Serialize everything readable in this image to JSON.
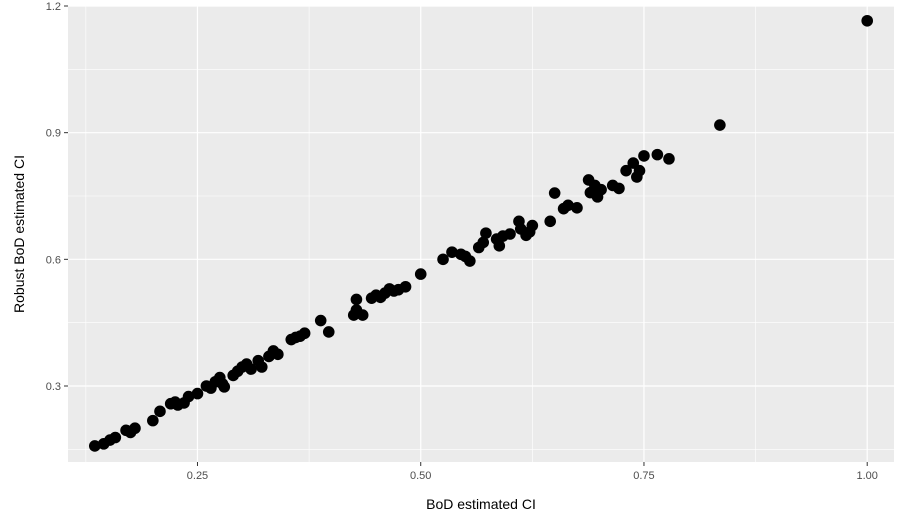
{
  "chart_data": {
    "type": "scatter",
    "title": "",
    "xlabel": "BoD estimated CI",
    "ylabel": "Robust BoD estimated CI",
    "xlim": [
      0.105,
      1.03
    ],
    "ylim": [
      0.12,
      1.2
    ],
    "x_ticks": [
      0.25,
      0.5,
      0.75,
      1.0
    ],
    "x_tick_labels": [
      "0.25",
      "0.50",
      "0.75",
      "1.00"
    ],
    "y_ticks": [
      0.3,
      0.6,
      0.9,
      1.2
    ],
    "y_tick_labels": [
      "0.3",
      "0.6",
      "0.9",
      "1.2"
    ],
    "grid": true,
    "background": "#ebebeb",
    "grid_color": "#ffffff",
    "point_color": "#000000",
    "points": [
      [
        0.135,
        0.158
      ],
      [
        0.145,
        0.163
      ],
      [
        0.152,
        0.172
      ],
      [
        0.158,
        0.178
      ],
      [
        0.17,
        0.195
      ],
      [
        0.175,
        0.19
      ],
      [
        0.18,
        0.2
      ],
      [
        0.2,
        0.218
      ],
      [
        0.208,
        0.24
      ],
      [
        0.22,
        0.258
      ],
      [
        0.225,
        0.262
      ],
      [
        0.228,
        0.255
      ],
      [
        0.235,
        0.26
      ],
      [
        0.24,
        0.275
      ],
      [
        0.25,
        0.282
      ],
      [
        0.26,
        0.3
      ],
      [
        0.265,
        0.295
      ],
      [
        0.27,
        0.31
      ],
      [
        0.275,
        0.32
      ],
      [
        0.278,
        0.305
      ],
      [
        0.28,
        0.298
      ],
      [
        0.29,
        0.325
      ],
      [
        0.295,
        0.335
      ],
      [
        0.3,
        0.345
      ],
      [
        0.305,
        0.352
      ],
      [
        0.31,
        0.34
      ],
      [
        0.318,
        0.36
      ],
      [
        0.322,
        0.345
      ],
      [
        0.33,
        0.37
      ],
      [
        0.335,
        0.383
      ],
      [
        0.34,
        0.375
      ],
      [
        0.355,
        0.41
      ],
      [
        0.36,
        0.415
      ],
      [
        0.365,
        0.418
      ],
      [
        0.37,
        0.425
      ],
      [
        0.388,
        0.455
      ],
      [
        0.397,
        0.428
      ],
      [
        0.425,
        0.468
      ],
      [
        0.428,
        0.48
      ],
      [
        0.428,
        0.505
      ],
      [
        0.435,
        0.468
      ],
      [
        0.445,
        0.508
      ],
      [
        0.45,
        0.515
      ],
      [
        0.455,
        0.51
      ],
      [
        0.46,
        0.52
      ],
      [
        0.465,
        0.53
      ],
      [
        0.47,
        0.525
      ],
      [
        0.475,
        0.528
      ],
      [
        0.483,
        0.535
      ],
      [
        0.5,
        0.565
      ],
      [
        0.525,
        0.6
      ],
      [
        0.535,
        0.617
      ],
      [
        0.545,
        0.612
      ],
      [
        0.55,
        0.607
      ],
      [
        0.555,
        0.596
      ],
      [
        0.565,
        0.628
      ],
      [
        0.57,
        0.64
      ],
      [
        0.573,
        0.662
      ],
      [
        0.585,
        0.648
      ],
      [
        0.588,
        0.632
      ],
      [
        0.592,
        0.655
      ],
      [
        0.6,
        0.66
      ],
      [
        0.61,
        0.69
      ],
      [
        0.612,
        0.672
      ],
      [
        0.618,
        0.657
      ],
      [
        0.622,
        0.665
      ],
      [
        0.625,
        0.68
      ],
      [
        0.645,
        0.69
      ],
      [
        0.65,
        0.757
      ],
      [
        0.66,
        0.72
      ],
      [
        0.665,
        0.728
      ],
      [
        0.675,
        0.722
      ],
      [
        0.688,
        0.788
      ],
      [
        0.69,
        0.758
      ],
      [
        0.695,
        0.775
      ],
      [
        0.698,
        0.748
      ],
      [
        0.702,
        0.765
      ],
      [
        0.715,
        0.775
      ],
      [
        0.722,
        0.768
      ],
      [
        0.73,
        0.81
      ],
      [
        0.738,
        0.828
      ],
      [
        0.742,
        0.795
      ],
      [
        0.745,
        0.81
      ],
      [
        0.75,
        0.845
      ],
      [
        0.765,
        0.848
      ],
      [
        0.778,
        0.838
      ],
      [
        0.835,
        0.918
      ],
      [
        1.0,
        1.165
      ]
    ]
  }
}
